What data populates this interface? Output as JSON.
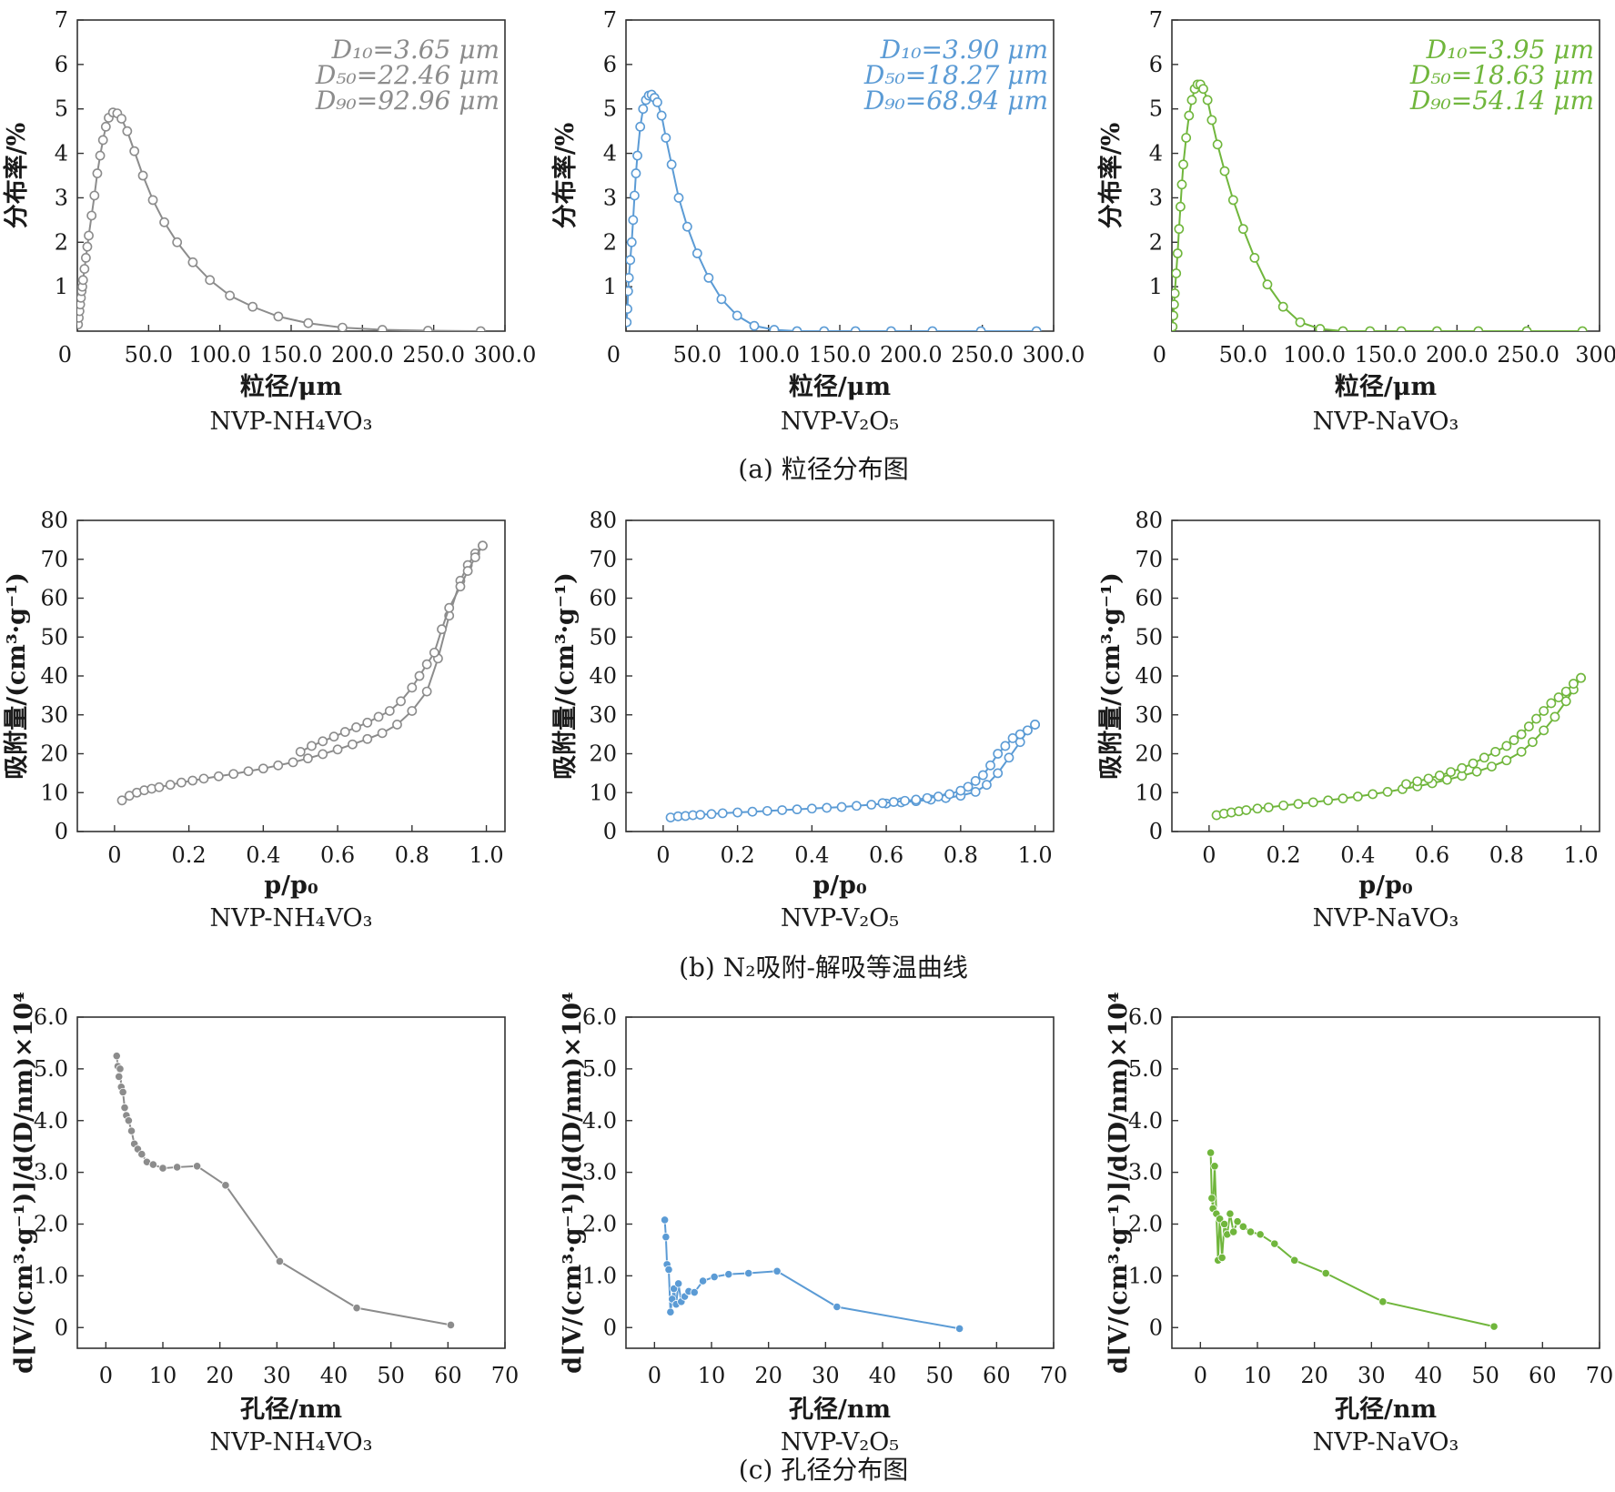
{
  "captions": {
    "a": "(a) 粒径分布图",
    "b": "(b) N₂吸附-解吸等温曲线",
    "c": "(c) 孔径分布图"
  },
  "colors": {
    "gray": "#8c8c8c",
    "blue": "#5b9bd5",
    "green": "#70b63c"
  },
  "chart_data": [
    {
      "type": "line",
      "row": "a",
      "sample": "NVP-NH₄VO₃",
      "color": "#8c8c8c",
      "marker": "open-circle",
      "xlabel": "粒径/μm",
      "ylabel": "分布率/%",
      "xlim": [
        0,
        300
      ],
      "ylim": [
        0,
        7
      ],
      "xticks": [
        "0",
        "50.0",
        "100.0",
        "150.0",
        "200.0",
        "250.0",
        "300.0"
      ],
      "yticks": [
        "1",
        "2",
        "3",
        "4",
        "5",
        "6",
        "7"
      ],
      "stats": [
        "D₁₀=3.65 μm",
        "D₅₀=22.46 μm",
        "D₉₀=92.96 μm"
      ],
      "series": [
        {
          "x": [
            0.5,
            1,
            1.5,
            2,
            2.5,
            3,
            3.5,
            4,
            5,
            6,
            7,
            8,
            10,
            12,
            14,
            16,
            18,
            20,
            22,
            25,
            28,
            31,
            35,
            40,
            46,
            53,
            61,
            70,
            81,
            93,
            107,
            123,
            141,
            162,
            186,
            214,
            246,
            283
          ],
          "y": [
            0.15,
            0.3,
            0.45,
            0.6,
            0.75,
            0.9,
            1.0,
            1.15,
            1.4,
            1.65,
            1.9,
            2.15,
            2.6,
            3.05,
            3.55,
            3.95,
            4.3,
            4.6,
            4.8,
            4.92,
            4.9,
            4.78,
            4.5,
            4.05,
            3.5,
            2.95,
            2.45,
            2.0,
            1.55,
            1.15,
            0.8,
            0.55,
            0.33,
            0.18,
            0.08,
            0.03,
            0.01,
            0.0
          ]
        }
      ]
    },
    {
      "type": "line",
      "row": "a",
      "sample": "NVP-V₂O₅",
      "color": "#5b9bd5",
      "marker": "open-circle",
      "xlabel": "粒径/μm",
      "ylabel": "分布率/%",
      "xlim": [
        0,
        300
      ],
      "ylim": [
        0,
        7
      ],
      "xticks": [
        "0",
        "50.0",
        "100.0",
        "150.0",
        "200.0",
        "250.0",
        "300.0"
      ],
      "yticks": [
        "1",
        "2",
        "3",
        "4",
        "5",
        "6",
        "7"
      ],
      "stats": [
        "D₁₀=3.90 μm",
        "D₅₀=18.27 μm",
        "D₉₀=68.94 μm"
      ],
      "series": [
        {
          "x": [
            0.5,
            1,
            1.5,
            2,
            3,
            4,
            5,
            6,
            7,
            8,
            10,
            12,
            14,
            16,
            18,
            20,
            22,
            25,
            28,
            32,
            37,
            43,
            50,
            58,
            67,
            78,
            90,
            104,
            120,
            139,
            161,
            186,
            215,
            249,
            288
          ],
          "y": [
            0.2,
            0.5,
            0.9,
            1.2,
            1.6,
            2.0,
            2.5,
            3.05,
            3.55,
            3.95,
            4.6,
            5.0,
            5.2,
            5.3,
            5.32,
            5.25,
            5.15,
            4.85,
            4.35,
            3.75,
            3.0,
            2.35,
            1.75,
            1.2,
            0.72,
            0.35,
            0.12,
            0.03,
            0.0,
            0.0,
            0.0,
            0.0,
            0.0,
            0.0,
            0.0
          ]
        }
      ]
    },
    {
      "type": "line",
      "row": "a",
      "sample": "NVP-NaVO₃",
      "color": "#70b63c",
      "marker": "open-circle",
      "xlabel": "粒径/μm",
      "ylabel": "分布率/%",
      "xlim": [
        0,
        300
      ],
      "ylim": [
        0,
        7
      ],
      "xticks": [
        "0",
        "50.0",
        "100.0",
        "150.0",
        "200.0",
        "250.0",
        "300."
      ],
      "yticks": [
        "1",
        "2",
        "3",
        "4",
        "5",
        "6",
        "7"
      ],
      "stats": [
        "D₁₀=3.95 μm",
        "D₅₀=18.63 μm",
        "D₉₀=54.14 μm"
      ],
      "series": [
        {
          "x": [
            0.5,
            1,
            1.5,
            2,
            3,
            4,
            5,
            6,
            7,
            8,
            10,
            12,
            14,
            16,
            18,
            20,
            22,
            25,
            28,
            32,
            37,
            43,
            50,
            58,
            67,
            78,
            90,
            104,
            120,
            139,
            161,
            186,
            215,
            249,
            288
          ],
          "y": [
            0.1,
            0.35,
            0.6,
            0.85,
            1.3,
            1.75,
            2.3,
            2.8,
            3.3,
            3.75,
            4.35,
            4.85,
            5.2,
            5.45,
            5.55,
            5.55,
            5.45,
            5.2,
            4.75,
            4.2,
            3.6,
            2.95,
            2.3,
            1.65,
            1.05,
            0.55,
            0.2,
            0.05,
            0.0,
            0.0,
            0.0,
            0.0,
            0.0,
            0.0,
            0.0
          ]
        }
      ]
    },
    {
      "type": "line",
      "row": "b",
      "sample": "NVP-NH₄VO₃",
      "color": "#8c8c8c",
      "marker": "open-circle",
      "xlabel": "p/p₀",
      "ylabel": "吸附量/(cm³·g⁻¹)",
      "xlim": [
        -0.1,
        1.05
      ],
      "ylim": [
        0,
        80
      ],
      "xticks": [
        "0",
        "0.2",
        "0.4",
        "0.6",
        "0.8",
        "1.0"
      ],
      "yticks": [
        "0",
        "10",
        "20",
        "30",
        "40",
        "50",
        "60",
        "70",
        "80"
      ],
      "series": [
        {
          "name": "adsorption",
          "x": [
            0.02,
            0.04,
            0.06,
            0.08,
            0.1,
            0.12,
            0.15,
            0.18,
            0.21,
            0.24,
            0.28,
            0.32,
            0.36,
            0.4,
            0.44,
            0.48,
            0.52,
            0.56,
            0.6,
            0.64,
            0.68,
            0.72,
            0.76,
            0.8,
            0.84,
            0.87,
            0.9,
            0.93,
            0.95,
            0.97,
            0.99
          ],
          "y": [
            8.0,
            9.2,
            10.0,
            10.6,
            11.0,
            11.4,
            12.0,
            12.6,
            13.1,
            13.6,
            14.2,
            14.8,
            15.5,
            16.2,
            17.0,
            17.8,
            18.8,
            19.9,
            21.1,
            22.4,
            23.8,
            25.3,
            27.5,
            31.0,
            36.0,
            44.5,
            55.5,
            64.5,
            68.5,
            71.5,
            73.5
          ]
        },
        {
          "name": "desorption",
          "x": [
            0.99,
            0.97,
            0.95,
            0.93,
            0.9,
            0.88,
            0.86,
            0.84,
            0.82,
            0.8,
            0.77,
            0.74,
            0.71,
            0.68,
            0.65,
            0.62,
            0.59,
            0.56,
            0.53,
            0.5
          ],
          "y": [
            73.5,
            70.5,
            67.0,
            63.0,
            57.5,
            52.0,
            46.0,
            43.0,
            40.0,
            37.0,
            33.5,
            31.0,
            29.5,
            28.0,
            26.8,
            25.6,
            24.4,
            23.2,
            22.0,
            20.5
          ]
        }
      ]
    },
    {
      "type": "line",
      "row": "b",
      "sample": "NVP-V₂O₅",
      "color": "#5b9bd5",
      "marker": "open-circle",
      "xlabel": "p/p₀",
      "ylabel": "吸附量/(cm³·g⁻¹)",
      "xlim": [
        -0.1,
        1.05
      ],
      "ylim": [
        0,
        80
      ],
      "xticks": [
        "0",
        "0.2",
        "0.4",
        "0.6",
        "0.8",
        "1.0"
      ],
      "yticks": [
        "0",
        "10",
        "20",
        "30",
        "40",
        "50",
        "60",
        "70",
        "80"
      ],
      "series": [
        {
          "name": "adsorption",
          "x": [
            0.02,
            0.04,
            0.06,
            0.08,
            0.1,
            0.13,
            0.16,
            0.2,
            0.24,
            0.28,
            0.32,
            0.36,
            0.4,
            0.44,
            0.48,
            0.52,
            0.56,
            0.6,
            0.64,
            0.68,
            0.72,
            0.76,
            0.8,
            0.84,
            0.87,
            0.9,
            0.93,
            0.96,
            0.98,
            1.0
          ],
          "y": [
            3.6,
            3.9,
            4.0,
            4.2,
            4.3,
            4.5,
            4.7,
            4.9,
            5.1,
            5.3,
            5.5,
            5.7,
            5.9,
            6.1,
            6.3,
            6.6,
            6.9,
            7.2,
            7.5,
            7.8,
            8.2,
            8.6,
            9.2,
            10.2,
            12.0,
            15.0,
            19.0,
            23.0,
            26.0,
            27.5
          ]
        },
        {
          "name": "desorption",
          "x": [
            1.0,
            0.98,
            0.96,
            0.94,
            0.92,
            0.9,
            0.88,
            0.86,
            0.84,
            0.82,
            0.8,
            0.77,
            0.74,
            0.71,
            0.68,
            0.65,
            0.62,
            0.59
          ],
          "y": [
            27.5,
            26.0,
            25.0,
            24.0,
            22.0,
            20.0,
            17.0,
            14.5,
            13.0,
            11.5,
            10.5,
            9.6,
            9.0,
            8.6,
            8.2,
            7.9,
            7.6,
            7.3
          ]
        }
      ]
    },
    {
      "type": "line",
      "row": "b",
      "sample": "NVP-NaVO₃",
      "color": "#70b63c",
      "marker": "open-circle",
      "xlabel": "p/p₀",
      "ylabel": "吸附量/(cm³·g⁻¹)",
      "xlim": [
        -0.1,
        1.05
      ],
      "ylim": [
        0,
        80
      ],
      "xticks": [
        "0",
        "0.2",
        "0.4",
        "0.6",
        "0.8",
        "1.0"
      ],
      "yticks": [
        "0",
        "10",
        "20",
        "30",
        "40",
        "50",
        "60",
        "70",
        "80"
      ],
      "series": [
        {
          "name": "adsorption",
          "x": [
            0.02,
            0.04,
            0.06,
            0.08,
            0.1,
            0.13,
            0.16,
            0.2,
            0.24,
            0.28,
            0.32,
            0.36,
            0.4,
            0.44,
            0.48,
            0.52,
            0.56,
            0.6,
            0.64,
            0.68,
            0.72,
            0.76,
            0.8,
            0.84,
            0.87,
            0.9,
            0.93,
            0.96,
            0.98,
            1.0
          ],
          "y": [
            4.2,
            4.6,
            4.9,
            5.2,
            5.5,
            5.9,
            6.2,
            6.7,
            7.1,
            7.5,
            8.0,
            8.5,
            9.0,
            9.6,
            10.2,
            10.9,
            11.6,
            12.4,
            13.3,
            14.3,
            15.4,
            16.7,
            18.3,
            20.5,
            23.0,
            26.0,
            29.5,
            33.5,
            36.5,
            39.5
          ]
        },
        {
          "name": "desorption",
          "x": [
            1.0,
            0.98,
            0.96,
            0.94,
            0.92,
            0.9,
            0.88,
            0.86,
            0.84,
            0.82,
            0.8,
            0.77,
            0.74,
            0.71,
            0.68,
            0.65,
            0.62,
            0.59,
            0.56,
            0.53
          ],
          "y": [
            39.5,
            38.0,
            36.0,
            34.5,
            33.0,
            31.0,
            29.0,
            27.0,
            25.0,
            23.5,
            22.0,
            20.5,
            19.0,
            17.5,
            16.3,
            15.3,
            14.4,
            13.6,
            12.9,
            12.2
          ]
        }
      ]
    },
    {
      "type": "line",
      "row": "c",
      "sample": "NVP-NH₄VO₃",
      "color": "#8c8c8c",
      "marker": "filled-circle",
      "xlabel": "孔径/nm",
      "ylabel": "d[V/(cm³·g⁻¹)]/d(D/nm)×10⁴",
      "xlim": [
        -5,
        70
      ],
      "ylim": [
        -0.4,
        6.0
      ],
      "xticks": [
        "0",
        "10",
        "20",
        "30",
        "40",
        "50",
        "60",
        "70"
      ],
      "yticks": [
        "0",
        "1.0",
        "2.0",
        "3.0",
        "4.0",
        "5.0",
        "6.0"
      ],
      "series": [
        {
          "x": [
            1.9,
            2.1,
            2.3,
            2.5,
            2.7,
            3.0,
            3.3,
            3.6,
            4.0,
            4.5,
            5.0,
            5.6,
            6.3,
            7.2,
            8.3,
            10.0,
            12.5,
            16.0,
            21.0,
            30.5,
            44.0,
            60.5
          ],
          "y": [
            5.25,
            5.05,
            4.85,
            5.0,
            4.65,
            4.55,
            4.25,
            4.1,
            4.0,
            3.8,
            3.55,
            3.45,
            3.35,
            3.2,
            3.15,
            3.08,
            3.1,
            3.12,
            2.75,
            1.28,
            0.38,
            0.05
          ]
        }
      ]
    },
    {
      "type": "line",
      "row": "c",
      "sample": "NVP-V₂O₅",
      "color": "#5b9bd5",
      "marker": "filled-circle",
      "xlabel": "孔径/nm",
      "ylabel": "d[V/(cm³·g⁻¹)]/d(D/nm)×10⁴",
      "xlim": [
        -5,
        70
      ],
      "ylim": [
        -0.4,
        6.0
      ],
      "xticks": [
        "0",
        "10",
        "20",
        "30",
        "40",
        "50",
        "60",
        "70"
      ],
      "yticks": [
        "0",
        "1.0",
        "2.0",
        "3.0",
        "4.0",
        "5.0",
        "6.0"
      ],
      "series": [
        {
          "x": [
            1.8,
            2.0,
            2.2,
            2.5,
            2.8,
            3.1,
            3.4,
            3.8,
            4.2,
            4.7,
            5.3,
            6.0,
            7.0,
            8.5,
            10.5,
            13.0,
            16.5,
            21.5,
            32.0,
            53.5
          ],
          "y": [
            2.08,
            1.75,
            1.22,
            1.12,
            0.3,
            0.55,
            0.75,
            0.45,
            0.85,
            0.5,
            0.6,
            0.7,
            0.68,
            0.9,
            0.98,
            1.03,
            1.05,
            1.09,
            0.4,
            -0.02
          ]
        }
      ]
    },
    {
      "type": "line",
      "row": "c",
      "sample": "NVP-NaVO₃",
      "color": "#70b63c",
      "marker": "filled-circle",
      "xlabel": "孔径/nm",
      "ylabel": "d[V/(cm³·g⁻¹)]/d(D/nm)×10⁴",
      "xlim": [
        -5,
        70
      ],
      "ylim": [
        -0.4,
        6.0
      ],
      "xticks": [
        "0",
        "10",
        "20",
        "30",
        "40",
        "50",
        "60",
        "70"
      ],
      "yticks": [
        "0",
        "1.0",
        "2.0",
        "3.0",
        "4.0",
        "5.0",
        "6.0"
      ],
      "series": [
        {
          "x": [
            1.8,
            2.0,
            2.2,
            2.5,
            2.8,
            3.1,
            3.4,
            3.8,
            4.2,
            4.7,
            5.2,
            5.8,
            6.5,
            7.5,
            8.8,
            10.5,
            13.0,
            16.5,
            22.0,
            32.0,
            51.5
          ],
          "y": [
            3.38,
            2.5,
            2.3,
            3.12,
            2.2,
            1.3,
            2.1,
            1.35,
            2.0,
            1.8,
            2.2,
            1.85,
            2.05,
            1.95,
            1.85,
            1.8,
            1.62,
            1.3,
            1.05,
            0.5,
            0.02
          ]
        }
      ]
    }
  ]
}
